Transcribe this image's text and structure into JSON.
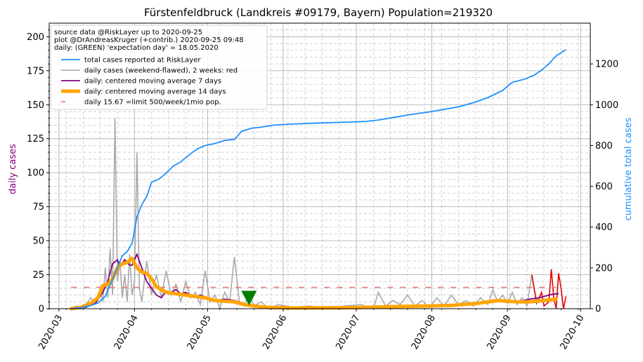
{
  "chart_data": {
    "type": "line",
    "title": "Fürstenfeldbruck (Landkreis #09179, Bayern) Population=219320",
    "ylabel_left": "daily cases",
    "ylabel_right": "cumulative total cases",
    "ylim_left": [
      0,
      210
    ],
    "ylim_right": [
      0,
      1400
    ],
    "yticks_left": [
      "0",
      "25",
      "50",
      "75",
      "100",
      "125",
      "150",
      "175",
      "200"
    ],
    "yticks_right": [
      "0",
      "200",
      "400",
      "600",
      "800",
      "1000",
      "1200"
    ],
    "xlim": [
      "2020-02-26",
      "2020-10-05"
    ],
    "xticks": [
      "2020-03",
      "2020-04",
      "2020-05",
      "2020-06",
      "2020-07",
      "2020-08",
      "2020-09",
      "2020-10"
    ],
    "grid": true,
    "legend_position": "top-left",
    "legend_header": [
      "source data @RiskLayer up to 2020-09-25",
      "plot @DrAndreasKruger (+contrib.) 2020-09-25 09:48",
      "daily: (GREEN) 'expectation day' = 18.05.2020"
    ],
    "series": [
      {
        "name": "total cases reported at RiskLayer",
        "axis": "right",
        "color": "#1e90ff",
        "points": [
          [
            "2020-03-06",
            0
          ],
          [
            "2020-03-10",
            5
          ],
          [
            "2020-03-14",
            15
          ],
          [
            "2020-03-17",
            28
          ],
          [
            "2020-03-20",
            60
          ],
          [
            "2020-03-23",
            145
          ],
          [
            "2020-03-25",
            200
          ],
          [
            "2020-03-27",
            260
          ],
          [
            "2020-03-29",
            280
          ],
          [
            "2020-03-31",
            320
          ],
          [
            "2020-04-02",
            450
          ],
          [
            "2020-04-04",
            510
          ],
          [
            "2020-04-06",
            550
          ],
          [
            "2020-04-08",
            620
          ],
          [
            "2020-04-11",
            635
          ],
          [
            "2020-04-14",
            665
          ],
          [
            "2020-04-17",
            700
          ],
          [
            "2020-04-20",
            720
          ],
          [
            "2020-04-24",
            760
          ],
          [
            "2020-04-27",
            785
          ],
          [
            "2020-04-30",
            800
          ],
          [
            "2020-05-04",
            810
          ],
          [
            "2020-05-08",
            825
          ],
          [
            "2020-05-12",
            830
          ],
          [
            "2020-05-15",
            870
          ],
          [
            "2020-05-19",
            885
          ],
          [
            "2020-05-23",
            890
          ],
          [
            "2020-05-28",
            900
          ],
          [
            "2020-06-04",
            905
          ],
          [
            "2020-06-15",
            910
          ],
          [
            "2020-06-28",
            915
          ],
          [
            "2020-07-05",
            918
          ],
          [
            "2020-07-10",
            925
          ],
          [
            "2020-07-15",
            935
          ],
          [
            "2020-07-20",
            945
          ],
          [
            "2020-07-25",
            955
          ],
          [
            "2020-07-31",
            965
          ],
          [
            "2020-08-05",
            975
          ],
          [
            "2020-08-12",
            990
          ],
          [
            "2020-08-18",
            1010
          ],
          [
            "2020-08-24",
            1035
          ],
          [
            "2020-08-30",
            1070
          ],
          [
            "2020-09-03",
            1110
          ],
          [
            "2020-09-08",
            1125
          ],
          [
            "2020-09-12",
            1145
          ],
          [
            "2020-09-15",
            1170
          ],
          [
            "2020-09-18",
            1200
          ],
          [
            "2020-09-21",
            1240
          ],
          [
            "2020-09-25",
            1270
          ]
        ]
      },
      {
        "name": "daily cases (weekend-flawed), 2 weeks: red",
        "axis": "left",
        "color": "#a9a9a9",
        "recent_color": "#e00000",
        "points": [
          [
            "2020-03-06",
            0
          ],
          [
            "2020-03-08",
            2
          ],
          [
            "2020-03-10",
            0
          ],
          [
            "2020-03-12",
            3
          ],
          [
            "2020-03-14",
            8
          ],
          [
            "2020-03-16",
            4
          ],
          [
            "2020-03-18",
            12
          ],
          [
            "2020-03-19",
            5
          ],
          [
            "2020-03-20",
            30
          ],
          [
            "2020-03-21",
            8
          ],
          [
            "2020-03-22",
            44
          ],
          [
            "2020-03-23",
            10
          ],
          [
            "2020-03-24",
            140
          ],
          [
            "2020-03-25",
            20
          ],
          [
            "2020-03-26",
            35
          ],
          [
            "2020-03-27",
            8
          ],
          [
            "2020-03-28",
            25
          ],
          [
            "2020-03-29",
            5
          ],
          [
            "2020-03-30",
            40
          ],
          [
            "2020-03-31",
            10
          ],
          [
            "2020-04-01",
            20
          ],
          [
            "2020-04-02",
            115
          ],
          [
            "2020-04-03",
            15
          ],
          [
            "2020-04-04",
            5
          ],
          [
            "2020-04-06",
            35
          ],
          [
            "2020-04-08",
            10
          ],
          [
            "2020-04-10",
            25
          ],
          [
            "2020-04-12",
            8
          ],
          [
            "2020-04-14",
            28
          ],
          [
            "2020-04-16",
            10
          ],
          [
            "2020-04-18",
            18
          ],
          [
            "2020-04-20",
            5
          ],
          [
            "2020-04-22",
            20
          ],
          [
            "2020-04-24",
            8
          ],
          [
            "2020-04-26",
            12
          ],
          [
            "2020-04-28",
            3
          ],
          [
            "2020-04-30",
            28
          ],
          [
            "2020-05-02",
            5
          ],
          [
            "2020-05-04",
            10
          ],
          [
            "2020-05-06",
            0
          ],
          [
            "2020-05-08",
            12
          ],
          [
            "2020-05-10",
            5
          ],
          [
            "2020-05-12",
            38
          ],
          [
            "2020-05-14",
            5
          ],
          [
            "2020-05-16",
            3
          ],
          [
            "2020-05-18",
            10
          ],
          [
            "2020-05-20",
            2
          ],
          [
            "2020-05-23",
            5
          ],
          [
            "2020-05-26",
            0
          ],
          [
            "2020-05-30",
            3
          ],
          [
            "2020-06-05",
            1
          ],
          [
            "2020-06-12",
            2
          ],
          [
            "2020-06-19",
            0
          ],
          [
            "2020-06-26",
            2
          ],
          [
            "2020-07-03",
            3
          ],
          [
            "2020-07-08",
            0
          ],
          [
            "2020-07-10",
            12
          ],
          [
            "2020-07-13",
            2
          ],
          [
            "2020-07-16",
            6
          ],
          [
            "2020-07-19",
            3
          ],
          [
            "2020-07-22",
            10
          ],
          [
            "2020-07-25",
            2
          ],
          [
            "2020-07-28",
            6
          ],
          [
            "2020-07-31",
            1
          ],
          [
            "2020-08-03",
            8
          ],
          [
            "2020-08-06",
            2
          ],
          [
            "2020-08-09",
            10
          ],
          [
            "2020-08-12",
            3
          ],
          [
            "2020-08-15",
            6
          ],
          [
            "2020-08-18",
            2
          ],
          [
            "2020-08-21",
            8
          ],
          [
            "2020-08-24",
            3
          ],
          [
            "2020-08-26",
            14
          ],
          [
            "2020-08-28",
            5
          ],
          [
            "2020-08-30",
            10
          ],
          [
            "2020-09-01",
            4
          ],
          [
            "2020-09-03",
            12
          ],
          [
            "2020-09-05",
            3
          ],
          [
            "2020-09-07",
            8
          ],
          [
            "2020-09-09",
            2
          ],
          [
            "2020-09-11",
            25
          ],
          [
            "2020-09-13",
            4
          ]
        ],
        "recent_points": [
          [
            "2020-09-11",
            25
          ],
          [
            "2020-09-13",
            4
          ],
          [
            "2020-09-15",
            12
          ],
          [
            "2020-09-16",
            2
          ],
          [
            "2020-09-18",
            5
          ],
          [
            "2020-09-19",
            29
          ],
          [
            "2020-09-20",
            8
          ],
          [
            "2020-09-21",
            0
          ],
          [
            "2020-09-22",
            26
          ],
          [
            "2020-09-23",
            15
          ],
          [
            "2020-09-24",
            0
          ],
          [
            "2020-09-25",
            9
          ]
        ]
      },
      {
        "name": "daily: centered moving average 7 days",
        "axis": "left",
        "color": "#800080",
        "points": [
          [
            "2020-03-08",
            0
          ],
          [
            "2020-03-12",
            1
          ],
          [
            "2020-03-16",
            4
          ],
          [
            "2020-03-19",
            12
          ],
          [
            "2020-03-21",
            20
          ],
          [
            "2020-03-23",
            33
          ],
          [
            "2020-03-25",
            36
          ],
          [
            "2020-03-26",
            31
          ],
          [
            "2020-03-28",
            36
          ],
          [
            "2020-03-30",
            32
          ],
          [
            "2020-03-31",
            32
          ],
          [
            "2020-04-02",
            40
          ],
          [
            "2020-04-04",
            30
          ],
          [
            "2020-04-06",
            20
          ],
          [
            "2020-04-08",
            15
          ],
          [
            "2020-04-10",
            10
          ],
          [
            "2020-04-12",
            8
          ],
          [
            "2020-04-14",
            13
          ],
          [
            "2020-04-16",
            12
          ],
          [
            "2020-04-18",
            14
          ],
          [
            "2020-04-20",
            11
          ],
          [
            "2020-04-22",
            12
          ],
          [
            "2020-04-24",
            10
          ],
          [
            "2020-04-26",
            9
          ],
          [
            "2020-04-28",
            10
          ],
          [
            "2020-05-01",
            8
          ],
          [
            "2020-05-04",
            6
          ],
          [
            "2020-05-08",
            7
          ],
          [
            "2020-05-12",
            6
          ],
          [
            "2020-05-14",
            5
          ],
          [
            "2020-05-17",
            3
          ],
          [
            "2020-05-20",
            2
          ],
          [
            "2020-05-25",
            1
          ],
          [
            "2020-06-01",
            0.5
          ],
          [
            "2020-07-01",
            0.5
          ],
          [
            "2020-07-10",
            1.5
          ],
          [
            "2020-07-20",
            2
          ],
          [
            "2020-07-31",
            2
          ],
          [
            "2020-08-10",
            3
          ],
          [
            "2020-08-20",
            4
          ],
          [
            "2020-08-28",
            6
          ],
          [
            "2020-09-05",
            5
          ],
          [
            "2020-09-10",
            7
          ],
          [
            "2020-09-14",
            8
          ],
          [
            "2020-09-18",
            10
          ],
          [
            "2020-09-21",
            11
          ],
          [
            "2020-09-22",
            11
          ]
        ]
      },
      {
        "name": "daily: centered moving average 14 days",
        "axis": "left",
        "color": "#ffa500",
        "points": [
          [
            "2020-03-06",
            0
          ],
          [
            "2020-03-10",
            1
          ],
          [
            "2020-03-14",
            4
          ],
          [
            "2020-03-17",
            8
          ],
          [
            "2020-03-19",
            17
          ],
          [
            "2020-03-21",
            18
          ],
          [
            "2020-03-23",
            22
          ],
          [
            "2020-03-25",
            30
          ],
          [
            "2020-03-27",
            33
          ],
          [
            "2020-03-29",
            34
          ],
          [
            "2020-03-31",
            37
          ],
          [
            "2020-04-02",
            30
          ],
          [
            "2020-04-04",
            27
          ],
          [
            "2020-04-06",
            26
          ],
          [
            "2020-04-08",
            22
          ],
          [
            "2020-04-10",
            16
          ],
          [
            "2020-04-12",
            14
          ],
          [
            "2020-04-14",
            12
          ],
          [
            "2020-04-18",
            11
          ],
          [
            "2020-04-22",
            10
          ],
          [
            "2020-04-26",
            9
          ],
          [
            "2020-04-30",
            8
          ],
          [
            "2020-05-04",
            6
          ],
          [
            "2020-05-08",
            5.5
          ],
          [
            "2020-05-12",
            5
          ],
          [
            "2020-05-16",
            3
          ],
          [
            "2020-05-20",
            2
          ],
          [
            "2020-05-25",
            1
          ],
          [
            "2020-06-05",
            0.5
          ],
          [
            "2020-07-01",
            0.8
          ],
          [
            "2020-07-15",
            1.5
          ],
          [
            "2020-07-31",
            2
          ],
          [
            "2020-08-10",
            2.5
          ],
          [
            "2020-08-20",
            4
          ],
          [
            "2020-08-28",
            6
          ],
          [
            "2020-09-05",
            5
          ],
          [
            "2020-09-10",
            5
          ],
          [
            "2020-09-16",
            6
          ],
          [
            "2020-09-21",
            7
          ]
        ]
      },
      {
        "name": "daily 15.67 =limit 500/week/1mio pop.",
        "axis": "left",
        "color": "#f08080",
        "style": "dashed",
        "value": 15.67,
        "x_range": [
          "2020-03-06",
          "2020-09-21"
        ]
      }
    ],
    "annotations": [
      {
        "type": "marker",
        "shape": "triangle-down",
        "color": "#008000",
        "x": "2020-05-18",
        "y": 8,
        "label": "expectation day"
      }
    ]
  }
}
